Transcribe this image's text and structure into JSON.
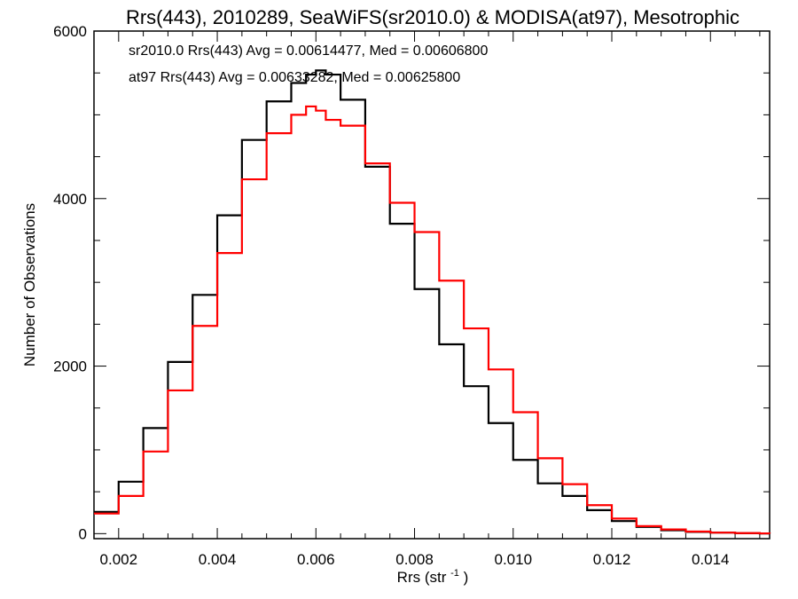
{
  "chart_data": {
    "type": "line",
    "title": "Rrs(443), 2010289, SeaWiFS(sr2010.0) & MODISA(at97), Mesotrophic",
    "xlabel": "Rrs (str",
    "xlabel_sup": "-1",
    "xlabel_suffix": ")",
    "ylabel": "Number of Observations",
    "xlim": [
      0.0015,
      0.0152
    ],
    "ylim": [
      -60,
      6000
    ],
    "x_ticks": [
      0.002,
      0.004,
      0.006,
      0.008,
      0.01,
      0.012,
      0.014
    ],
    "x_tick_labels": [
      "0.002",
      "0.004",
      "0.006",
      "0.008",
      "0.010",
      "0.012",
      "0.014"
    ],
    "y_ticks": [
      0,
      2000,
      4000,
      6000
    ],
    "y_tick_labels": [
      "0",
      "2000",
      "4000",
      "6000"
    ],
    "grid": false,
    "annotations": [
      {
        "text": "sr2010.0 Rrs(443) Avg = 0.00614477, Med = 0.00606800",
        "color": "#000000"
      },
      {
        "text": "at97 Rrs(443) Avg = 0.00633282, Med = 0.00625800",
        "color": "#ff0000"
      }
    ],
    "series": [
      {
        "color": "#000000",
        "x": [
          0.0015,
          0.002,
          0.0025,
          0.003,
          0.0035,
          0.004,
          0.0045,
          0.005,
          0.0055,
          0.0058,
          0.006,
          0.0062,
          0.0065,
          0.007,
          0.0075,
          0.008,
          0.0085,
          0.009,
          0.0095,
          0.01,
          0.0105,
          0.011,
          0.0115,
          0.012,
          0.0125,
          0.013,
          0.0135,
          0.014,
          0.0145,
          0.015,
          0.0152
        ],
        "y": [
          260,
          620,
          1260,
          2050,
          2850,
          3800,
          4700,
          5160,
          5380,
          5480,
          5530,
          5480,
          5180,
          4380,
          3700,
          2920,
          2260,
          1760,
          1320,
          880,
          600,
          450,
          280,
          150,
          80,
          40,
          20,
          12,
          5,
          2,
          1
        ]
      },
      {
        "color": "#ff0000",
        "x": [
          0.0015,
          0.002,
          0.0025,
          0.003,
          0.0035,
          0.004,
          0.0045,
          0.005,
          0.0055,
          0.0058,
          0.006,
          0.0062,
          0.0065,
          0.007,
          0.0075,
          0.008,
          0.0085,
          0.009,
          0.0095,
          0.01,
          0.0105,
          0.011,
          0.0115,
          0.012,
          0.0125,
          0.013,
          0.0135,
          0.014,
          0.0145,
          0.015,
          0.0152
        ],
        "y": [
          240,
          450,
          980,
          1710,
          2480,
          3350,
          4230,
          4780,
          5000,
          5100,
          5050,
          4940,
          4870,
          4420,
          3950,
          3600,
          3020,
          2450,
          1960,
          1450,
          900,
          590,
          340,
          180,
          90,
          50,
          25,
          12,
          6,
          3,
          1
        ]
      }
    ]
  }
}
